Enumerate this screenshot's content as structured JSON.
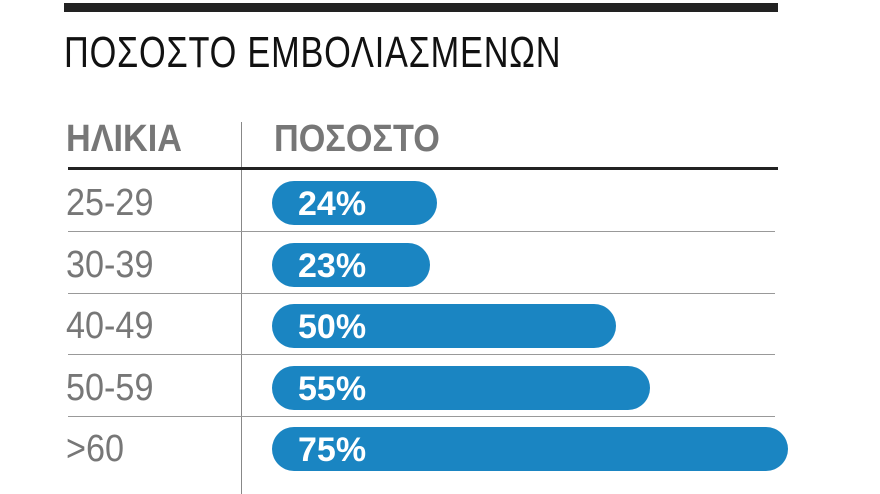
{
  "chart_data": {
    "type": "bar",
    "orientation": "horizontal",
    "title": "ΠΟΣΟΣΤΟ ΕΜΒΟΛΙΑΣΜΕΝΩΝ",
    "column_headers": [
      "ΗΛΙΚΙΑ",
      "ΠΟΣΟΣΤΟ"
    ],
    "categories": [
      "25-29",
      "30-39",
      "40-49",
      "50-59",
      ">60"
    ],
    "values": [
      24,
      23,
      50,
      55,
      75
    ],
    "value_labels": [
      "24%",
      "23%",
      "50%",
      "55%",
      "75%"
    ],
    "unit": "%",
    "bar_color": "#1a85c2"
  }
}
